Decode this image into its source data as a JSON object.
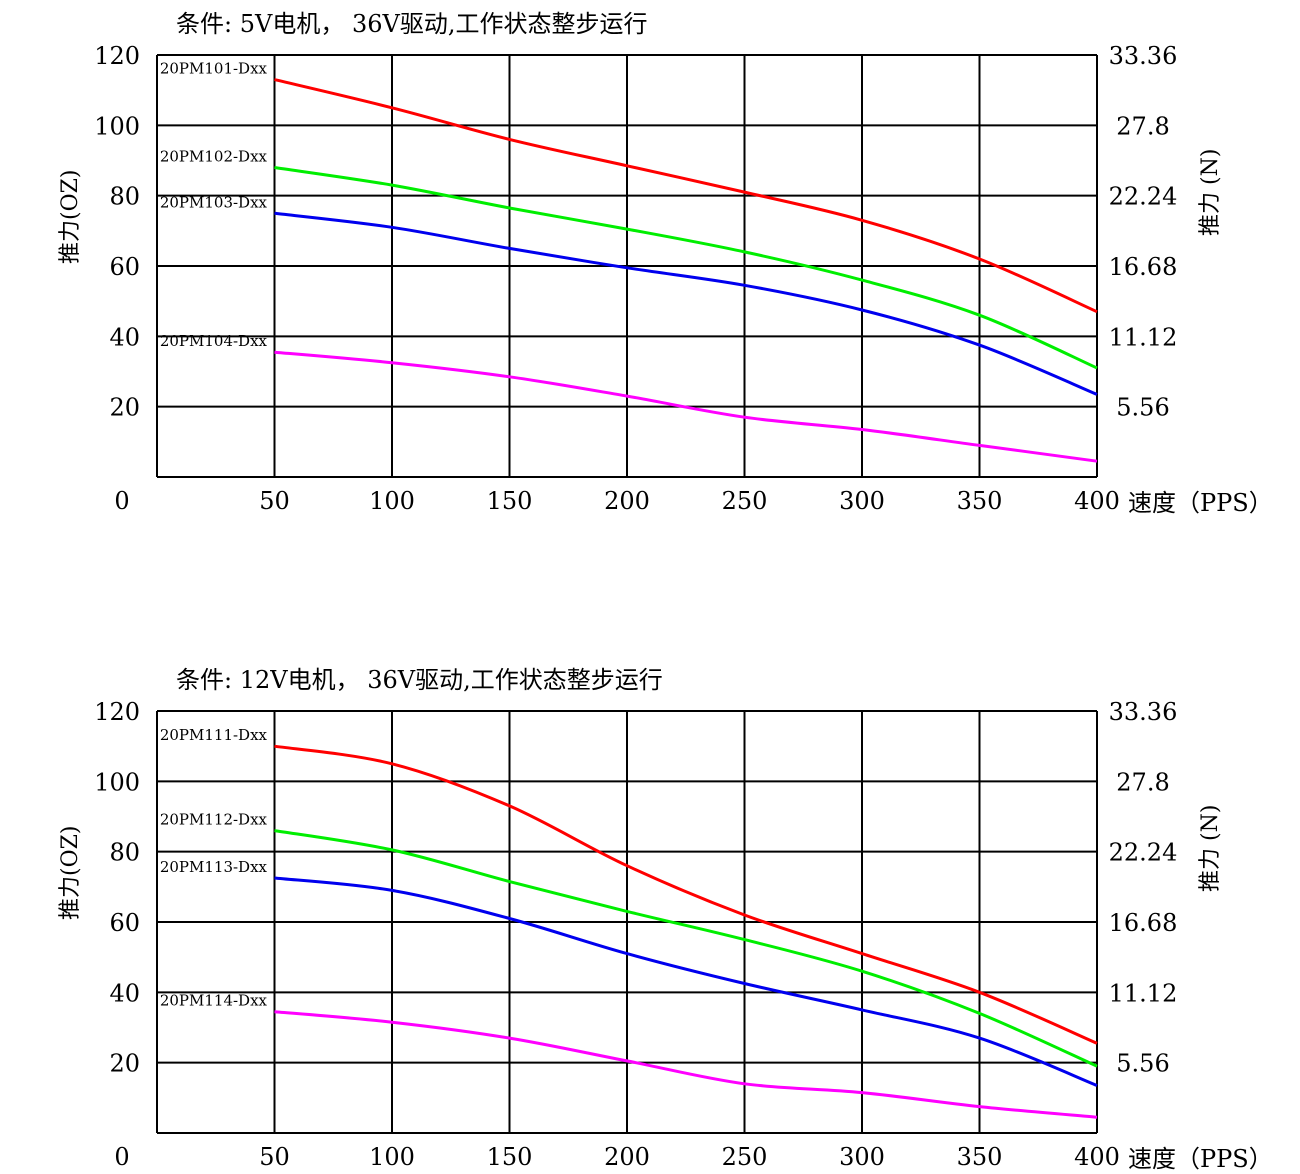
{
  "chart_data": [
    {
      "type": "line",
      "title": "条件: 5V电机， 36V驱动,工作状态整步运行",
      "ylabel": "推力(OZ)",
      "y2label": "推力 (N)",
      "xlabel": "速度（PPS）",
      "xlim": [
        0,
        400
      ],
      "ylim": [
        0,
        120
      ],
      "x_ticks": [
        0,
        50,
        100,
        150,
        200,
        250,
        300,
        350,
        400
      ],
      "y_ticks": [
        20,
        40,
        60,
        80,
        100,
        120
      ],
      "y_tick_labels": [
        "20",
        "40",
        "60",
        "80",
        "100",
        "120"
      ],
      "y2_tick_labels": [
        "5.56",
        "11.12",
        "16.68",
        "22.24",
        "27.8",
        "33.36"
      ],
      "grid": true,
      "series": [
        {
          "name": "20PM101-Dxx",
          "color": "#ff0000",
          "x": [
            50,
            100,
            150,
            200,
            250,
            300,
            350,
            400
          ],
          "y": [
            113,
            105,
            96,
            88.5,
            81,
            73,
            62,
            47
          ]
        },
        {
          "name": "20PM102-Dxx",
          "color": "#00ee00",
          "x": [
            50,
            100,
            150,
            200,
            250,
            300,
            350,
            400
          ],
          "y": [
            88,
            83,
            76.5,
            70.5,
            64,
            56,
            46,
            31
          ]
        },
        {
          "name": "20PM103-Dxx",
          "color": "#0000ee",
          "x": [
            50,
            100,
            150,
            200,
            250,
            300,
            350,
            400
          ],
          "y": [
            75,
            71,
            65,
            59.5,
            54.5,
            47.5,
            37.5,
            23.5
          ]
        },
        {
          "name": "20PM104-Dxx",
          "color": "#ff00ff",
          "x": [
            50,
            100,
            150,
            200,
            250,
            300,
            350,
            400
          ],
          "y": [
            35.5,
            32.5,
            28.5,
            23,
            17,
            13.5,
            9,
            4.5
          ]
        }
      ]
    },
    {
      "type": "line",
      "title": "条件: 12V电机， 36V驱动,工作状态整步运行",
      "ylabel": "推力(OZ)",
      "y2label": "推力 (N)",
      "xlabel": "速度（PPS）",
      "xlim": [
        0,
        400
      ],
      "ylim": [
        0,
        120
      ],
      "x_ticks": [
        0,
        50,
        100,
        150,
        200,
        250,
        300,
        350,
        400
      ],
      "y_ticks": [
        20,
        40,
        60,
        80,
        100,
        120
      ],
      "y_tick_labels": [
        "20",
        "40",
        "60",
        "80",
        "100",
        "120"
      ],
      "y2_tick_labels": [
        "5.56",
        "11.12",
        "16.68",
        "22.24",
        "27.8",
        "33.36"
      ],
      "grid": true,
      "series": [
        {
          "name": "20PM111-Dxx",
          "color": "#ff0000",
          "x": [
            50,
            100,
            150,
            200,
            250,
            300,
            350,
            400
          ],
          "y": [
            110,
            105,
            93,
            76,
            62,
            51,
            40,
            25.5
          ]
        },
        {
          "name": "20PM112-Dxx",
          "color": "#00ee00",
          "x": [
            50,
            100,
            150,
            200,
            250,
            300,
            350,
            400
          ],
          "y": [
            86,
            80.5,
            71.5,
            63,
            55,
            46,
            34,
            19
          ]
        },
        {
          "name": "20PM113-Dxx",
          "color": "#0000ee",
          "x": [
            50,
            100,
            150,
            200,
            250,
            300,
            350,
            400
          ],
          "y": [
            72.5,
            69,
            61,
            51,
            42.5,
            35,
            27,
            13.5
          ]
        },
        {
          "name": "20PM114-Dxx",
          "color": "#ff00ff",
          "x": [
            50,
            100,
            150,
            200,
            250,
            300,
            350,
            400
          ],
          "y": [
            34.5,
            31.5,
            27,
            20.5,
            14,
            11.5,
            7.5,
            4.5
          ]
        }
      ]
    }
  ]
}
